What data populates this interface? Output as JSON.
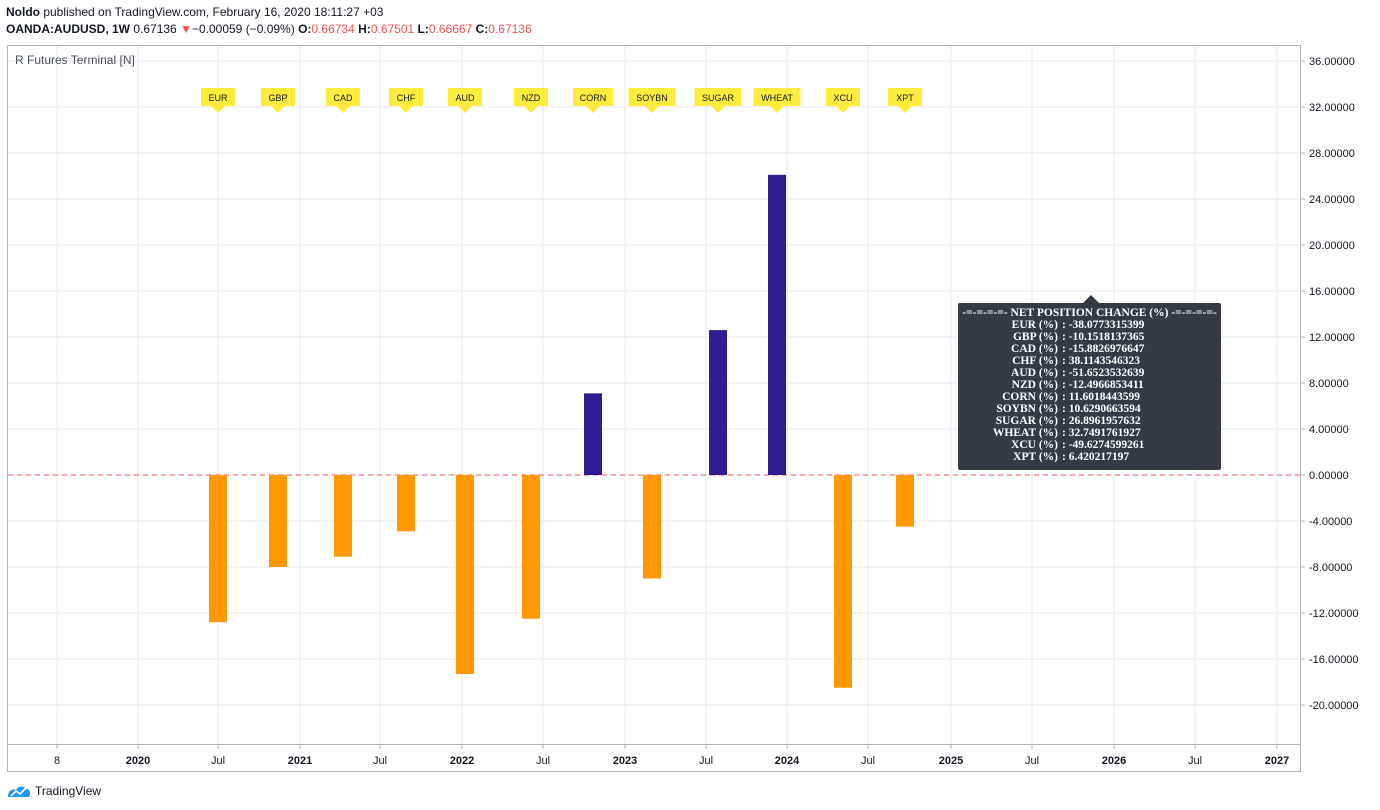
{
  "header": {
    "author": "Noldo",
    "published_text": " published on TradingView.com, February 16, 2020 18:11:27 +03",
    "symbol": "OANDA:AUDUSD, 1W",
    "price": "0.67136",
    "change_arrow": "▼",
    "change": "−0.00059 (−0.09%)",
    "open_label": "O:",
    "open": "0.66734",
    "high_label": "H:",
    "high": "0.67501",
    "low_label": "L:",
    "low": "0.66667",
    "close_label": "C:",
    "close": "0.67136"
  },
  "indicator_label": "R Futures Terminal [N]",
  "colors": {
    "negative_bar": "#ff9800",
    "positive_bar": "#311b92",
    "zero_line": "#ef5350",
    "flag": "#ffeb3b",
    "grid": "#e6eaf0",
    "tooltip_bg": "#363a45"
  },
  "chart_data": {
    "type": "bar",
    "title": "R Futures Terminal [N]",
    "categories": [
      "EUR",
      "GBP",
      "CAD",
      "CHF",
      "AUD",
      "NZD",
      "CORN",
      "SOYBN",
      "SUGAR",
      "WHEAT",
      "XCU",
      "XPT"
    ],
    "values": [
      -12.8,
      -8.0,
      -7.1,
      -4.9,
      -17.3,
      -12.5,
      7.1,
      -9.0,
      12.6,
      26.1,
      -18.5,
      -4.5
    ],
    "ylim": [
      -23.0,
      37.0
    ],
    "y_ticks": [
      "36.00000",
      "32.00000",
      "28.00000",
      "24.00000",
      "20.00000",
      "16.00000",
      "12.00000",
      "8.00000",
      "4.00000",
      "0.00000",
      "-4.00000",
      "-8.00000",
      "-12.00000",
      "-16.00000",
      "-20.00000"
    ],
    "y_tick_values": [
      36,
      32,
      28,
      24,
      20,
      16,
      12,
      8,
      4,
      0,
      -4,
      -8,
      -12,
      -16,
      -20
    ],
    "x_ticks": [
      "8",
      "2020",
      "Jul",
      "2021",
      "Jul",
      "2022",
      "Jul",
      "2023",
      "Jul",
      "2024",
      "Jul",
      "2025",
      "Jul",
      "2026",
      "Jul",
      "2027"
    ],
    "x_tick_is_year": [
      false,
      true,
      false,
      true,
      false,
      true,
      false,
      true,
      false,
      true,
      false,
      true,
      false,
      true,
      false,
      true
    ],
    "zero_line": 0,
    "grid": true
  },
  "tooltip": {
    "title": "-=-=-=-=- NET POSITION CHANGE (%) -=-=-=-=-",
    "rows": [
      {
        "name": "EUR (%)",
        "value": ": -38.0773315399"
      },
      {
        "name": "GBP (%)",
        "value": ": -10.1518137365"
      },
      {
        "name": "CAD (%)",
        "value": ": -15.8826976647"
      },
      {
        "name": "CHF (%)",
        "value": ": 38.1143546323"
      },
      {
        "name": "AUD (%)",
        "value": ": -51.6523532639"
      },
      {
        "name": "NZD (%)",
        "value": ": -12.4966853411"
      },
      {
        "name": "CORN (%)",
        "value": ": 11.6018443599"
      },
      {
        "name": "SOYBN (%)",
        "value": ": 10.6290663594"
      },
      {
        "name": "SUGAR (%)",
        "value": ": 26.8961957632"
      },
      {
        "name": "WHEAT (%)",
        "value": ": 32.7491761927"
      },
      {
        "name": "XCU (%)",
        "value": ": -49.6274599261"
      },
      {
        "name": "XPT (%)",
        "value": ": 6.420217197"
      }
    ]
  },
  "footer": {
    "brand": "TradingView"
  }
}
